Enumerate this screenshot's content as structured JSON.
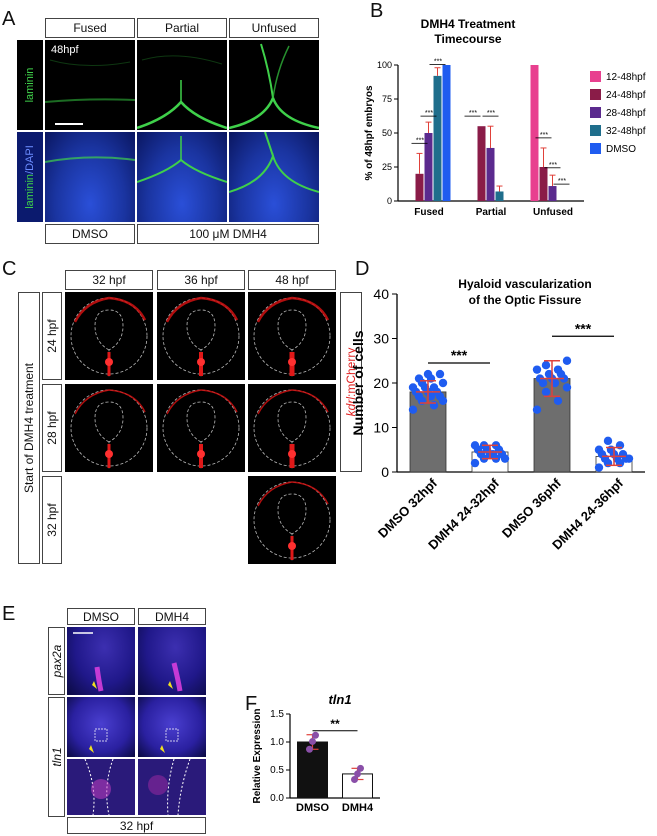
{
  "panel_labels": {
    "a": "A",
    "b": "B",
    "c": "C",
    "d": "D",
    "e": "E",
    "f": "F"
  },
  "panelA": {
    "columns": [
      "Fused",
      "Partial",
      "Unfused"
    ],
    "time": "48hpf",
    "row1_stain": "laminin",
    "row2_stain_a": "laminin",
    "row2_stain_b": "/DAPI",
    "bottom_left": "DMSO",
    "bottom_right": "100 μM DMH4"
  },
  "panelC": {
    "columns": [
      "32 hpf",
      "36 hpf",
      "48 hpf"
    ],
    "rows": [
      "24 hpf",
      "28 hpf",
      "32 hpf"
    ],
    "side_label": "Start of DMH4 treatment",
    "reporter_italic": "kdrl",
    "reporter_rest": ":mCherry"
  },
  "panelE": {
    "columns": [
      "DMSO",
      "DMH4"
    ],
    "gene1": "pax2a",
    "gene2": "tln1",
    "bottom": "32 hpf"
  },
  "colors": {
    "c12": "#e8408f",
    "c24": "#8a1c48",
    "c28": "#5b2a8e",
    "c32": "#1f6e8c",
    "dmso": "#1f5cf0",
    "error": "#e0413a",
    "dot_blue": "#1f5cf0",
    "bar_gray": "#6e6e6e",
    "green": "#3fd04a",
    "dapi": "#1e3fb8"
  },
  "chart_data": [
    {
      "id": "B",
      "type": "bar",
      "title": "DMH4 Treatment Timecourse",
      "ylabel": "% of 48hpf embryos",
      "xlabel": "",
      "categories": [
        "Fused",
        "Partial",
        "Unfused"
      ],
      "ylim": [
        0,
        100
      ],
      "yticks": [
        "0",
        "25",
        "50",
        "75",
        "100"
      ],
      "legend_position": "right",
      "series": [
        {
          "name": "12-48hpf",
          "values": [
            0,
            0,
            100
          ],
          "errors": [
            0,
            0,
            0
          ]
        },
        {
          "name": "24-48hpf",
          "values": [
            20,
            55,
            25
          ],
          "errors": [
            15,
            0,
            14
          ]
        },
        {
          "name": "28-48hpf",
          "values": [
            50,
            39,
            11
          ],
          "errors": [
            8,
            16,
            8
          ]
        },
        {
          "name": "32-48hpf",
          "values": [
            92,
            7,
            0
          ],
          "errors": [
            6,
            4,
            0
          ]
        },
        {
          "name": "DMSO",
          "values": [
            100,
            0,
            0
          ],
          "errors": [
            0,
            0,
            0
          ]
        }
      ],
      "significance": [
        "***",
        "***",
        "***",
        "***",
        "***",
        "***",
        "***",
        "***"
      ]
    },
    {
      "id": "D",
      "type": "bar",
      "title": "Hyaloid vascularization",
      "subtitle": "of the Optic Fissure",
      "ylabel": "Number of cells",
      "xlabel": "",
      "categories": [
        "DMSO 32hpf",
        "DMH4 24-32hpf",
        "DMSO 36phf",
        "DMH4 24-36hpf"
      ],
      "values": [
        18,
        4.5,
        21,
        3.5
      ],
      "errors": [
        2.5,
        1.5,
        4,
        2
      ],
      "ylim": [
        0,
        40
      ],
      "yticks": [
        "0",
        "10",
        "20",
        "30",
        "40"
      ],
      "points": [
        [
          14,
          15,
          16,
          16,
          17,
          17,
          17,
          18,
          18,
          18,
          19,
          19,
          19,
          20,
          20,
          21,
          21,
          22,
          22
        ],
        [
          2,
          3,
          3,
          3,
          4,
          4,
          4,
          4,
          5,
          5,
          5,
          6,
          6,
          6
        ],
        [
          14,
          16,
          18,
          19,
          20,
          20,
          21,
          21,
          21,
          22,
          22,
          23,
          23,
          24,
          25
        ],
        [
          1,
          2,
          2,
          3,
          3,
          3,
          3,
          4,
          4,
          4,
          5,
          5,
          6,
          7
        ]
      ],
      "significance": [
        "***",
        "***"
      ]
    },
    {
      "id": "F",
      "type": "bar",
      "title": "tln1",
      "ylabel": "Relative Expression",
      "xlabel": "",
      "categories": [
        "DMSO",
        "DMH4"
      ],
      "values": [
        1.0,
        0.43
      ],
      "errors": [
        0.13,
        0.1
      ],
      "points": [
        [
          0.87,
          1.01,
          1.12
        ],
        [
          0.33,
          0.43,
          0.53
        ]
      ],
      "ylim": [
        0,
        1.5
      ],
      "yticks": [
        "0.0",
        "0.5",
        "1.0",
        "1.5"
      ],
      "significance": [
        "**"
      ]
    }
  ]
}
